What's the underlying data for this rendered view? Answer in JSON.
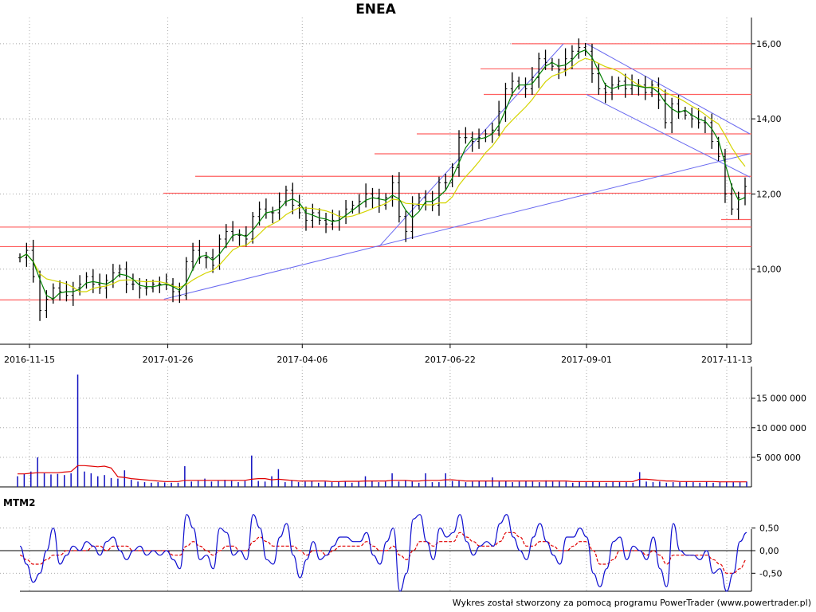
{
  "title": "ENEA",
  "mtm_label": "MTM2",
  "credit": "Wykres został stworzony za pomocą programu PowerTrader (www.powertrader.pl)",
  "colors": {
    "candle": "#000000",
    "ma_fast": "#008000",
    "ma_slow": "#d4d400",
    "hline": "#ff6060",
    "trendline": "#6a6af0",
    "volume": "#1010c0",
    "volume_avg": "#e00000",
    "mtm": "#1010d0",
    "mtm_signal": "#e00000",
    "grid": "#a8a8a8"
  },
  "chart_data": [
    {
      "type": "candlestick",
      "panel": "price",
      "xlabel": "",
      "ylabel": "",
      "x_dates": [
        "2016-11-15",
        "2017-01-26",
        "2017-04-06",
        "2017-06-22",
        "2017-09-01",
        "2017-11-13"
      ],
      "ylim": [
        8.0,
        16.4
      ],
      "yticks": [
        "16,00",
        "14,00",
        "12,00",
        "10,00"
      ],
      "ytick_values": [
        16.0,
        14.0,
        12.0,
        10.0
      ],
      "grid": true,
      "horizontal_levels": [
        9.18,
        10.6,
        11.12,
        12.02,
        12.47,
        13.07,
        13.6,
        14.65,
        15.33,
        16.0,
        11.32
      ],
      "trendlines": [
        {
          "from": [
            "2017-01-24",
            9.2
          ],
          "to": [
            "2017-11-25",
            13.07
          ]
        },
        {
          "from": [
            "2017-05-16",
            10.6
          ],
          "to": [
            "2017-08-20",
            16.0
          ]
        },
        {
          "from": [
            "2017-09-01",
            16.0
          ],
          "to": [
            "2017-11-25",
            13.6
          ]
        },
        {
          "from": [
            "2017-09-01",
            14.65
          ],
          "to": [
            "2017-11-25",
            12.45
          ]
        }
      ],
      "closes": [
        10.3,
        10.5,
        9.8,
        8.9,
        9.2,
        9.5,
        9.4,
        9.3,
        9.5,
        9.6,
        9.8,
        9.6,
        9.5,
        9.7,
        9.9,
        10.0,
        9.6,
        9.6,
        9.5,
        9.5,
        9.6,
        9.6,
        9.6,
        9.4,
        9.3,
        10.2,
        10.5,
        10.3,
        10.3,
        10.1,
        10.8,
        11.0,
        10.9,
        10.9,
        10.8,
        11.4,
        11.6,
        11.5,
        11.5,
        11.8,
        12.1,
        11.7,
        11.5,
        11.3,
        11.5,
        11.3,
        11.2,
        11.3,
        11.4,
        11.6,
        11.7,
        11.8,
        12.0,
        11.9,
        11.7,
        11.9,
        12.3,
        11.4,
        11.0,
        11.7,
        11.9,
        11.8,
        11.7,
        12.3,
        12.3,
        12.7,
        13.5,
        13.5,
        13.4,
        13.5,
        13.6,
        13.7,
        14.2,
        14.8,
        15.0,
        14.9,
        14.8,
        15.1,
        15.6,
        15.5,
        15.4,
        15.3,
        15.6,
        15.8,
        15.9,
        15.8,
        15.2,
        14.8,
        14.7,
        14.9,
        15.0,
        14.8,
        14.9,
        14.9,
        14.7,
        14.9,
        14.5,
        13.9,
        14.4,
        14.2,
        14.1,
        14.0,
        13.9,
        13.9,
        13.4,
        13.0,
        12.0,
        11.6,
        11.9,
        12.2
      ]
    },
    {
      "type": "bar",
      "panel": "volume",
      "ylim": [
        0,
        19000000
      ],
      "yticks": [
        "15 000 000",
        "10 000 000",
        "5 000 000"
      ],
      "ytick_values": [
        15000000,
        10000000,
        5000000
      ],
      "note_series": [
        "volume",
        "volume average"
      ],
      "values": [
        1800000,
        2200000,
        2600000,
        5000000,
        2300000,
        2100000,
        2200000,
        2000000,
        2300000,
        19000000,
        2600000,
        2300000,
        1800000,
        2000000,
        1500000,
        1400000,
        2800000,
        1200000,
        900000,
        800000,
        700000,
        800000,
        750000,
        700000,
        700000,
        3500000,
        900000,
        1000000,
        1400000,
        900000,
        1000000,
        1200000,
        1000000,
        800000,
        1000000,
        5300000,
        1000000,
        900000,
        1800000,
        3000000,
        800000,
        1100000,
        800000,
        900000,
        1000000,
        700000,
        900000,
        800000,
        900000,
        1000000,
        700000,
        1000000,
        1800000,
        1000000,
        800000,
        900000,
        2300000,
        900000,
        1100000,
        900000,
        700000,
        2300000,
        800000,
        800000,
        2300000,
        1000000,
        1000000,
        800000,
        900000,
        1000000,
        1000000,
        1600000,
        900000,
        1000000,
        800000,
        900000,
        1000000,
        900000,
        800000,
        1100000,
        900000,
        900000,
        900000,
        700000,
        900000,
        800000,
        900000,
        800000,
        700000,
        900000,
        800000,
        800000,
        700000,
        2500000,
        900000,
        800000,
        900000,
        700000,
        800000,
        800000,
        900000,
        800000,
        700000,
        900000,
        700000,
        800000,
        900000,
        800000,
        800000,
        900000
      ],
      "average": [
        2200000,
        2200000,
        2300000,
        2400000,
        2400000,
        2400000,
        2400000,
        2500000,
        2600000,
        3600000,
        3600000,
        3500000,
        3400000,
        3500000,
        3200000,
        1700000,
        1600000,
        1400000,
        1300000,
        1200000,
        1100000,
        1000000,
        900000,
        900000,
        900000,
        1100000,
        1100000,
        1100000,
        1100000,
        1100000,
        1100000,
        1100000,
        1100000,
        1100000,
        1100000,
        1300000,
        1400000,
        1400000,
        1200000,
        1300000,
        1200000,
        1100000,
        1000000,
        1000000,
        1000000,
        1000000,
        1000000,
        900000,
        900000,
        950000,
        950000,
        950000,
        1000000,
        1000000,
        1000000,
        1000000,
        1100000,
        1100000,
        1100000,
        1000000,
        1000000,
        1100000,
        1100000,
        1100000,
        1200000,
        1200000,
        1100000,
        1000000,
        1000000,
        1000000,
        1000000,
        1000000,
        1000000,
        1000000,
        1000000,
        1000000,
        1000000,
        1000000,
        1000000,
        1000000,
        1000000,
        1000000,
        1000000,
        900000,
        900000,
        900000,
        900000,
        900000,
        900000,
        900000,
        900000,
        900000,
        900000,
        1300000,
        1300000,
        1200000,
        1100000,
        1000000,
        1000000,
        900000,
        900000,
        900000,
        900000,
        900000,
        900000,
        850000,
        850000,
        850000,
        850000,
        850000
      ]
    },
    {
      "type": "line",
      "panel": "MTM2",
      "ylim": [
        -0.9,
        0.9
      ],
      "yticks": [
        "0,50",
        "0,00",
        "-0,50"
      ],
      "ytick_values": [
        0.5,
        0.0,
        -0.5
      ],
      "series": [
        {
          "name": "MTM2",
          "values": [
            0.1,
            -0.3,
            -0.7,
            -0.5,
            0.0,
            0.5,
            -0.3,
            -0.1,
            0.1,
            0.0,
            0.2,
            0.1,
            -0.1,
            0.2,
            0.3,
            0.0,
            -0.2,
            0.0,
            0.1,
            -0.1,
            0.0,
            -0.1,
            0.0,
            -0.2,
            -0.4,
            0.8,
            0.5,
            -0.2,
            -0.1,
            -0.4,
            0.5,
            0.4,
            -0.1,
            0.0,
            -0.2,
            0.8,
            0.5,
            -0.2,
            -0.3,
            0.3,
            0.6,
            -0.1,
            -0.6,
            -0.2,
            0.2,
            -0.2,
            -0.1,
            0.1,
            0.3,
            0.3,
            0.2,
            0.2,
            0.4,
            -0.1,
            -0.3,
            0.2,
            0.5,
            -0.9,
            -0.5,
            0.7,
            0.8,
            0.2,
            -0.2,
            0.5,
            0.3,
            0.4,
            0.8,
            0.2,
            -0.1,
            0.1,
            0.2,
            0.1,
            0.6,
            0.8,
            0.3,
            0.0,
            -0.2,
            0.3,
            0.6,
            0.2,
            -0.1,
            -0.3,
            0.3,
            0.3,
            0.5,
            0.3,
            -0.5,
            -0.8,
            -0.4,
            0.2,
            0.3,
            -0.2,
            0.1,
            0.0,
            -0.2,
            0.3,
            -0.4,
            -0.8,
            0.6,
            0.0,
            -0.1,
            -0.1,
            -0.2,
            0.0,
            -0.5,
            -0.4,
            -0.9,
            -0.5,
            0.2,
            0.4
          ]
        },
        {
          "name": "MTM2 average",
          "values": [
            -0.1,
            -0.2,
            -0.3,
            -0.3,
            -0.2,
            -0.1,
            -0.1,
            0.0,
            0.0,
            0.0,
            0.0,
            0.1,
            0.1,
            0.0,
            0.1,
            0.1,
            0.1,
            0.0,
            0.0,
            0.0,
            0.0,
            0.0,
            0.0,
            -0.1,
            -0.1,
            0.1,
            0.2,
            0.1,
            0.0,
            -0.1,
            0.0,
            0.1,
            0.1,
            0.0,
            0.0,
            0.2,
            0.3,
            0.2,
            0.1,
            0.1,
            0.1,
            0.1,
            0.0,
            -0.1,
            0.0,
            0.0,
            -0.1,
            0.0,
            0.1,
            0.1,
            0.1,
            0.1,
            0.2,
            0.1,
            0.0,
            0.0,
            0.1,
            -0.1,
            -0.2,
            0.0,
            0.2,
            0.2,
            0.1,
            0.2,
            0.2,
            0.2,
            0.4,
            0.3,
            0.2,
            0.1,
            0.1,
            0.1,
            0.2,
            0.4,
            0.4,
            0.3,
            0.1,
            0.1,
            0.2,
            0.2,
            0.1,
            0.0,
            0.0,
            0.1,
            0.2,
            0.2,
            0.0,
            -0.3,
            -0.3,
            -0.2,
            0.0,
            0.0,
            0.0,
            0.0,
            -0.1,
            0.0,
            -0.1,
            -0.3,
            -0.1,
            -0.1,
            -0.1,
            -0.1,
            -0.1,
            -0.1,
            -0.2,
            -0.3,
            -0.5,
            -0.5,
            -0.4,
            -0.2
          ]
        }
      ]
    }
  ]
}
